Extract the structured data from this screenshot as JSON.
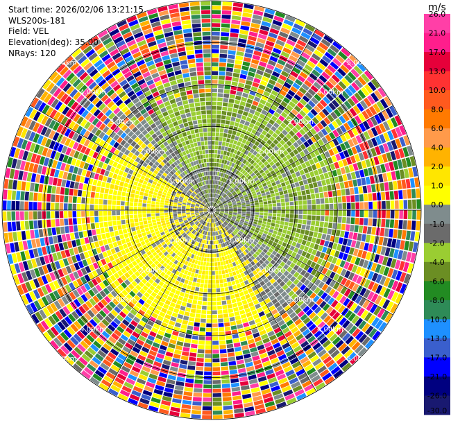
{
  "header": {
    "start_time": "Start time: 2026/02/06 13:21:15",
    "instrument": "WLS200s-181",
    "field": "Field: VEL",
    "elevation": "Elevation(deg): 35.00",
    "nrays": "NRays: 120"
  },
  "chart_data": {
    "type": "heatmap",
    "projection": "polar PPI",
    "field": "VEL",
    "units": "m/s",
    "elevation_deg": 35.0,
    "n_rays": 120,
    "range_max_km": 5.0,
    "range_ring_labels": [
      "1.00km",
      "2.00km",
      "3.00km",
      "4.00km",
      "5.00km"
    ],
    "range_rings_km": [
      1,
      2,
      3,
      4,
      5
    ],
    "radial_spokes_deg": [
      0,
      30,
      60,
      90,
      120,
      150,
      180,
      210,
      240,
      270,
      300,
      330
    ],
    "pattern": {
      "near_range_km": 1.0,
      "coherent_range_km": 2.7,
      "noise_start_km": 3.2,
      "towards_sector": "north-east (≈ -1 to -4 m/s, olive/green)",
      "away_sector": "south-west (≈ +2 to +4 m/s, yellow)"
    },
    "colorbar": {
      "unit_label": "m/s",
      "ticks": [
        "26.0",
        "21.0",
        "17.0",
        "13.0",
        "10.0",
        "8.0",
        "6.0",
        "4.0",
        "2.0",
        "1.0",
        "0.0",
        "-1.0",
        "-2.0",
        "-4.0",
        "-6.0",
        "-8.0",
        "-10.0",
        "-13.0",
        "-17.0",
        "-21.0",
        "-26.0",
        "-30.0"
      ],
      "colors": [
        "#ff3fa7",
        "#ff1e8c",
        "#e6003a",
        "#ff3232",
        "#ff5a1e",
        "#ff7a00",
        "#ff9a4a",
        "#ffb300",
        "#ffe600",
        "#ffff00",
        "#7f8c8d",
        "#6b6b6b",
        "#9acd32",
        "#6b8e23",
        "#228b22",
        "#2e8b57",
        "#1e90ff",
        "#3a5fcd",
        "#0000ff",
        "#000080",
        "#191970"
      ]
    }
  }
}
